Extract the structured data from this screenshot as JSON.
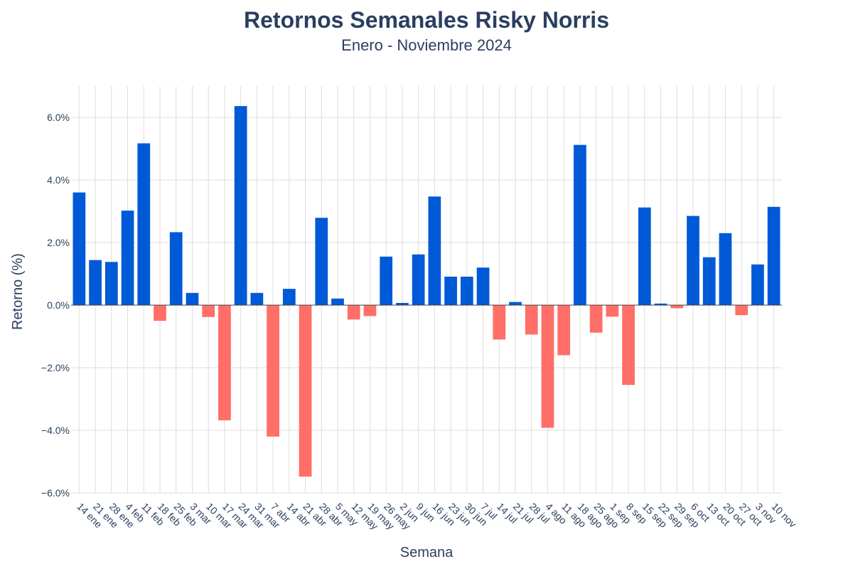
{
  "chart_data": {
    "type": "bar",
    "title": "Retornos Semanales Risky Norris",
    "subtitle": "Enero - Noviembre 2024",
    "xlabel": "Semana",
    "ylabel": "Retorno (%)",
    "ylim": [
      -6.0,
      7.0
    ],
    "yticks": [
      -6,
      -4,
      -2,
      0,
      2,
      4,
      6
    ],
    "ytick_labels": [
      "−6.0%",
      "−4.0%",
      "−2.0%",
      "0.0%",
      "2.0%",
      "4.0%",
      "6.0%"
    ],
    "grid": true,
    "positive_color": "#0059d6",
    "negative_color": "#ff6e67",
    "categories": [
      "14 ene",
      "21 ene",
      "28 ene",
      "4 feb",
      "11 feb",
      "18 feb",
      "25 feb",
      "3 mar",
      "10 mar",
      "17 mar",
      "24 mar",
      "31 mar",
      "7 abr",
      "14 abr",
      "21 abr",
      "28 abr",
      "5 may",
      "12 may",
      "19 may",
      "26 may",
      "2 jun",
      "9 jun",
      "16 jun",
      "23 jun",
      "30 jun",
      "7 jul",
      "14 jul",
      "21 jul",
      "28 jul",
      "4 ago",
      "11 ago",
      "18 ago",
      "25 ago",
      "1 sep",
      "8 sep",
      "15 sep",
      "22 sep",
      "29 sep",
      "6 oct",
      "13 oct",
      "20 oct",
      "27 oct",
      "3 nov",
      "10 nov"
    ],
    "values": [
      3.6,
      1.44,
      1.38,
      3.02,
      5.17,
      -0.5,
      2.33,
      0.39,
      -0.38,
      -3.68,
      6.36,
      0.39,
      -4.2,
      0.52,
      -5.48,
      2.79,
      0.21,
      -0.46,
      -0.35,
      1.55,
      0.07,
      1.62,
      3.47,
      0.91,
      0.91,
      1.2,
      -1.1,
      0.1,
      -0.94,
      -3.92,
      -1.6,
      5.12,
      -0.88,
      -0.37,
      -2.55,
      3.12,
      0.05,
      -0.1,
      2.85,
      1.53,
      2.3,
      -0.32,
      1.3,
      3.14
    ]
  }
}
